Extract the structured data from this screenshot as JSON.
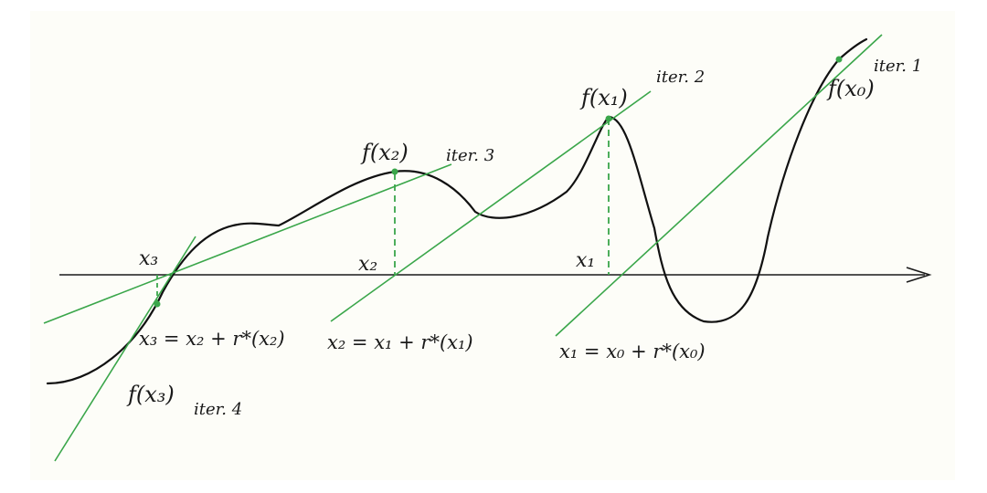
{
  "colors": {
    "curve": "#111111",
    "tangent": "#3aa64a",
    "axis": "#1a1a1a",
    "paper": "#fdfdf8"
  },
  "labels": {
    "f_x0": "f(x₀)",
    "f_x1": "f(x₁)",
    "f_x2": "f(x₂)",
    "f_x3": "f(x₃)",
    "iter1": "iter. 1",
    "iter2": "iter. 2",
    "iter3": "iter. 3",
    "iter4": "iter. 4",
    "x1": "x₁",
    "x2": "x₂",
    "x3": "x₃",
    "eq1": "x₁ = x₀ + r*(x₀)",
    "eq2": "x₂ = x₁ + r*(x₁)",
    "eq3": "x₃ = x₂ + r*(x₂)"
  }
}
